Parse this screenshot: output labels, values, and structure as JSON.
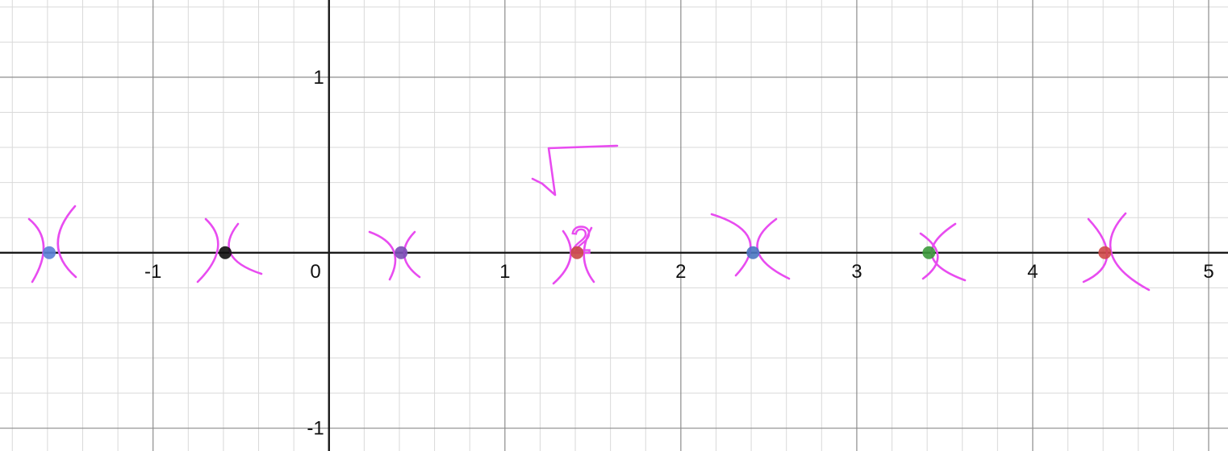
{
  "colors": {
    "background": "#ffffff",
    "minor_grid": "#d9d9d9",
    "major_grid": "#8c8c8c",
    "axis": "#1a1a1a",
    "annotation": "#e84cf0"
  },
  "chart_data": {
    "type": "scatter",
    "title": "",
    "xlabel": "",
    "ylabel": "",
    "xlim": [
      -1.87,
      5.11
    ],
    "ylim": [
      -1.13,
      1.44
    ],
    "grid": true,
    "minor_grid_step": 0.2,
    "x_ticks": [
      {
        "value": -1,
        "label": "-1"
      },
      {
        "value": 0,
        "label": "0"
      },
      {
        "value": 1,
        "label": "1"
      },
      {
        "value": 2,
        "label": "2"
      },
      {
        "value": 3,
        "label": "3"
      },
      {
        "value": 4,
        "label": "4"
      },
      {
        "value": 5,
        "label": "5"
      }
    ],
    "y_ticks": [
      {
        "value": 1,
        "label": "1"
      },
      {
        "value": -1,
        "label": "-1"
      }
    ],
    "points": [
      {
        "x": -1.59,
        "y": 0,
        "color": "#5b7fd6"
      },
      {
        "x": -0.59,
        "y": 0,
        "color": "#111111"
      },
      {
        "x": 0.41,
        "y": 0,
        "color": "#7a4fb5"
      },
      {
        "x": 1.41,
        "y": 0,
        "color": "#c94a44"
      },
      {
        "x": 2.41,
        "y": 0,
        "color": "#4a78c2"
      },
      {
        "x": 3.41,
        "y": 0,
        "color": "#3c9a3c"
      },
      {
        "x": 4.41,
        "y": 0,
        "color": "#d04a4a"
      }
    ],
    "annotations": [
      {
        "text": "2",
        "x": 1.41,
        "y": 0.37,
        "note": "handwritten square root of 2"
      }
    ]
  }
}
